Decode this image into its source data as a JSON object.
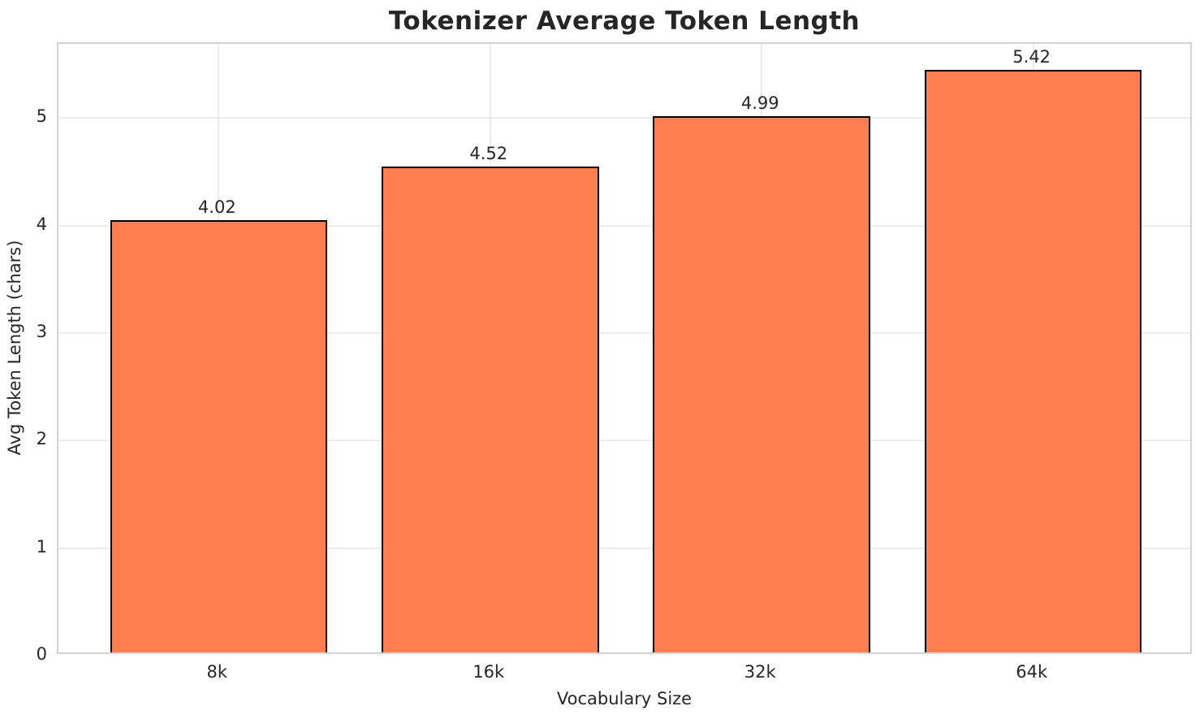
{
  "chart_data": {
    "type": "bar",
    "title": "Tokenizer Average Token Length",
    "xlabel": "Vocabulary Size",
    "ylabel": "Avg Token Length (chars)",
    "categories": [
      "8k",
      "16k",
      "32k",
      "64k"
    ],
    "values": [
      4.02,
      4.52,
      4.99,
      5.42
    ],
    "value_labels": [
      "4.02",
      "4.52",
      "4.99",
      "5.42"
    ],
    "yticks": [
      "0",
      "1",
      "2",
      "3",
      "4",
      "5"
    ],
    "ylim": [
      0,
      5.69
    ],
    "xlim": [
      -0.59,
      3.59
    ],
    "bar_width_fraction": 0.8,
    "grid": true,
    "legend": null,
    "bar_color": "#FF7F50",
    "bar_edge_color": "#000000",
    "text_color": "#262626",
    "grid_color": "#ececec",
    "spine_color": "#d3d3d3"
  }
}
